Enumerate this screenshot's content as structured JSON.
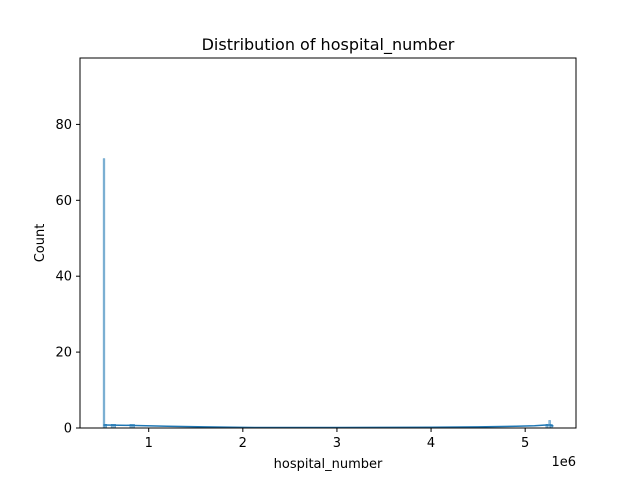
{
  "chart_data": {
    "type": "histogram",
    "title": "Distribution of hospital_number",
    "xlabel": "hospital_number",
    "ylabel": "Count",
    "x_offset_label": "1e6",
    "xlim": [
      0.27,
      5.54
    ],
    "ylim": [
      0,
      97.5
    ],
    "x_ticks": [
      1,
      2,
      3,
      4,
      5
    ],
    "x_tick_labels": [
      "1",
      "2",
      "3",
      "4",
      "5"
    ],
    "y_ticks": [
      0,
      20,
      40,
      60,
      80
    ],
    "y_tick_labels": [
      "0",
      "20",
      "40",
      "60",
      "80"
    ],
    "grid": false,
    "legend": false,
    "bar_color": "#1f77b4",
    "bars": [
      {
        "x0": 0.515,
        "x1": 0.535,
        "count": 71
      },
      {
        "x0": 0.535,
        "x1": 0.555,
        "count": 1
      },
      {
        "x0": 0.6,
        "x1": 0.65,
        "count": 1
      },
      {
        "x0": 0.8,
        "x1": 0.85,
        "count": 1
      },
      {
        "x0": 5.22,
        "x1": 5.24,
        "count": 1
      },
      {
        "x0": 5.25,
        "x1": 5.27,
        "count": 2
      },
      {
        "x0": 5.27,
        "x1": 5.29,
        "count": 1
      }
    ],
    "kde": {
      "x": [
        0.52,
        0.8,
        1.2,
        1.6,
        2.0,
        2.5,
        3.0,
        3.5,
        4.0,
        4.5,
        4.9,
        5.1,
        5.2,
        5.26,
        5.3
      ],
      "y": [
        0.8,
        0.7,
        0.45,
        0.3,
        0.15,
        0.12,
        0.12,
        0.15,
        0.2,
        0.3,
        0.45,
        0.6,
        0.75,
        0.8,
        0.5
      ]
    }
  }
}
